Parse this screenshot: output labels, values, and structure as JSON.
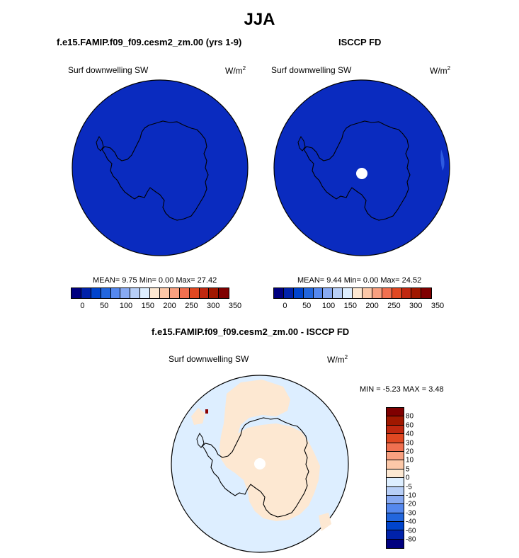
{
  "title": "JJA",
  "panels": [
    {
      "title": "f.e15.FAMIP.f09_f09.cesm2_zm.00 (yrs 1-9)",
      "left_label": "Surf downwelling SW",
      "units": "W/m",
      "units_sup": "2",
      "stats": "MEAN=   9.75  Min=    0.00  Max=  27.42"
    },
    {
      "title": "ISCCP FD",
      "left_label": "Surf downwelling SW",
      "units": "W/m",
      "units_sup": "2",
      "stats": "MEAN=   9.44  Min=    0.00  Max=  24.52"
    },
    {
      "title": "f.e15.FAMIP.f09_f09.cesm2_zm.00 - ISCCP FD",
      "left_label": "Surf downwelling SW",
      "units": "W/m",
      "units_sup": "2",
      "stats": "MIN =  -5.23 MAX =   3.48"
    }
  ],
  "colorbar_top": {
    "colors": [
      "#00007f",
      "#0022aa",
      "#0044cc",
      "#2266dd",
      "#5588ee",
      "#88aaf2",
      "#b8cff7",
      "#ddeeff",
      "#fde8d2",
      "#fcc8a8",
      "#f8a080",
      "#f07050",
      "#e04822",
      "#c02810",
      "#a01800",
      "#7f0000"
    ],
    "ticks": [
      "0",
      "50",
      "100",
      "150",
      "200",
      "250",
      "300",
      "350"
    ]
  },
  "colorbar_diff": {
    "colors": [
      "#7f0000",
      "#a01800",
      "#c02810",
      "#e04822",
      "#f07050",
      "#f8a080",
      "#fcc8a8",
      "#fde8d2",
      "#ddeeff",
      "#b8cff7",
      "#88aaf2",
      "#5588ee",
      "#2266dd",
      "#0044cc",
      "#0022aa",
      "#00007f"
    ],
    "ticks": [
      "80",
      "60",
      "40",
      "30",
      "20",
      "10",
      "5",
      "0",
      "-5",
      "-10",
      "-20",
      "-30",
      "-40",
      "-60",
      "-80"
    ]
  },
  "chart_data": [
    {
      "type": "heatmap",
      "title": "f.e15.FAMIP.f09_f09.cesm2_zm.00 (yrs 1-9)",
      "variable": "Surf downwelling SW",
      "units": "W/m^2",
      "projection": "south polar stereographic",
      "dominant_color": "#0a2bbf",
      "mean": 9.75,
      "min": 0.0,
      "max": 27.42,
      "colorbar_levels": [
        0,
        25,
        50,
        75,
        100,
        125,
        150,
        175,
        200,
        225,
        250,
        275,
        300,
        325,
        350
      ]
    },
    {
      "type": "heatmap",
      "title": "ISCCP FD",
      "variable": "Surf downwelling SW",
      "units": "W/m^2",
      "projection": "south polar stereographic",
      "dominant_color": "#0a2bbf",
      "mean": 9.44,
      "min": 0.0,
      "max": 24.52,
      "missing_data": "white pole hole",
      "colorbar_levels": [
        0,
        25,
        50,
        75,
        100,
        125,
        150,
        175,
        200,
        225,
        250,
        275,
        300,
        325,
        350
      ]
    },
    {
      "type": "heatmap",
      "title": "f.e15.FAMIP.f09_f09.cesm2_zm.00 - ISCCP FD",
      "variable": "Surf downwelling SW",
      "units": "W/m^2",
      "projection": "south polar stereographic",
      "min": -5.23,
      "max": 3.48,
      "regions": [
        {
          "area": "ocean",
          "color": "#ddeeff",
          "range": "-5 to 0"
        },
        {
          "area": "Antarctic continent",
          "color": "#fde8d2",
          "range": "0 to 5"
        },
        {
          "area": "pole",
          "color": "#ffffff",
          "range": "missing"
        }
      ],
      "colorbar_levels": [
        -80,
        -60,
        -40,
        -30,
        -20,
        -10,
        -5,
        0,
        5,
        10,
        20,
        30,
        40,
        60,
        80
      ]
    }
  ]
}
